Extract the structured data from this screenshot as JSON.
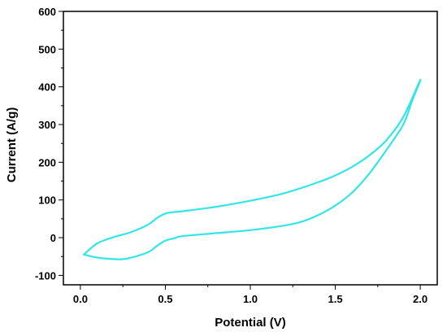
{
  "chart_data": {
    "type": "line",
    "title": "",
    "xlabel": "Potential (V)",
    "ylabel": "Current (A/g)",
    "xlim": [
      -0.1,
      2.1
    ],
    "ylim": [
      -125,
      600
    ],
    "x_ticks": [
      0.0,
      0.5,
      1.0,
      1.5,
      2.0
    ],
    "x_tick_labels": [
      "0.0",
      "0.5",
      "1.0",
      "1.5",
      "2.0"
    ],
    "y_ticks": [
      -100,
      0,
      100,
      200,
      300,
      400,
      500,
      600
    ],
    "y_tick_labels": [
      "-100",
      "0",
      "100",
      "200",
      "300",
      "400",
      "500",
      "600"
    ],
    "grid": false,
    "legend": "none",
    "series": [
      {
        "color": "#33e6e6",
        "x": [
          0.02,
          0.1,
          0.2,
          0.3,
          0.4,
          0.45,
          0.5,
          0.55,
          0.6,
          0.8,
          1.0,
          1.2,
          1.4,
          1.5,
          1.6,
          1.7,
          1.8,
          1.9,
          2.0,
          1.95,
          1.9,
          1.8,
          1.7,
          1.6,
          1.5,
          1.4,
          1.3,
          1.2,
          1.0,
          0.8,
          0.6,
          0.55,
          0.5,
          0.45,
          0.4,
          0.3,
          0.25,
          0.2,
          0.1,
          0.02
        ],
        "y": [
          -45,
          -15,
          2,
          15,
          35,
          52,
          64,
          68,
          70,
          82,
          98,
          118,
          147,
          165,
          188,
          218,
          258,
          320,
          418,
          360,
          300,
          232,
          170,
          120,
          85,
          60,
          42,
          32,
          20,
          12,
          4,
          -2,
          -8,
          -22,
          -38,
          -53,
          -57,
          -57,
          -53,
          -45
        ]
      }
    ]
  }
}
